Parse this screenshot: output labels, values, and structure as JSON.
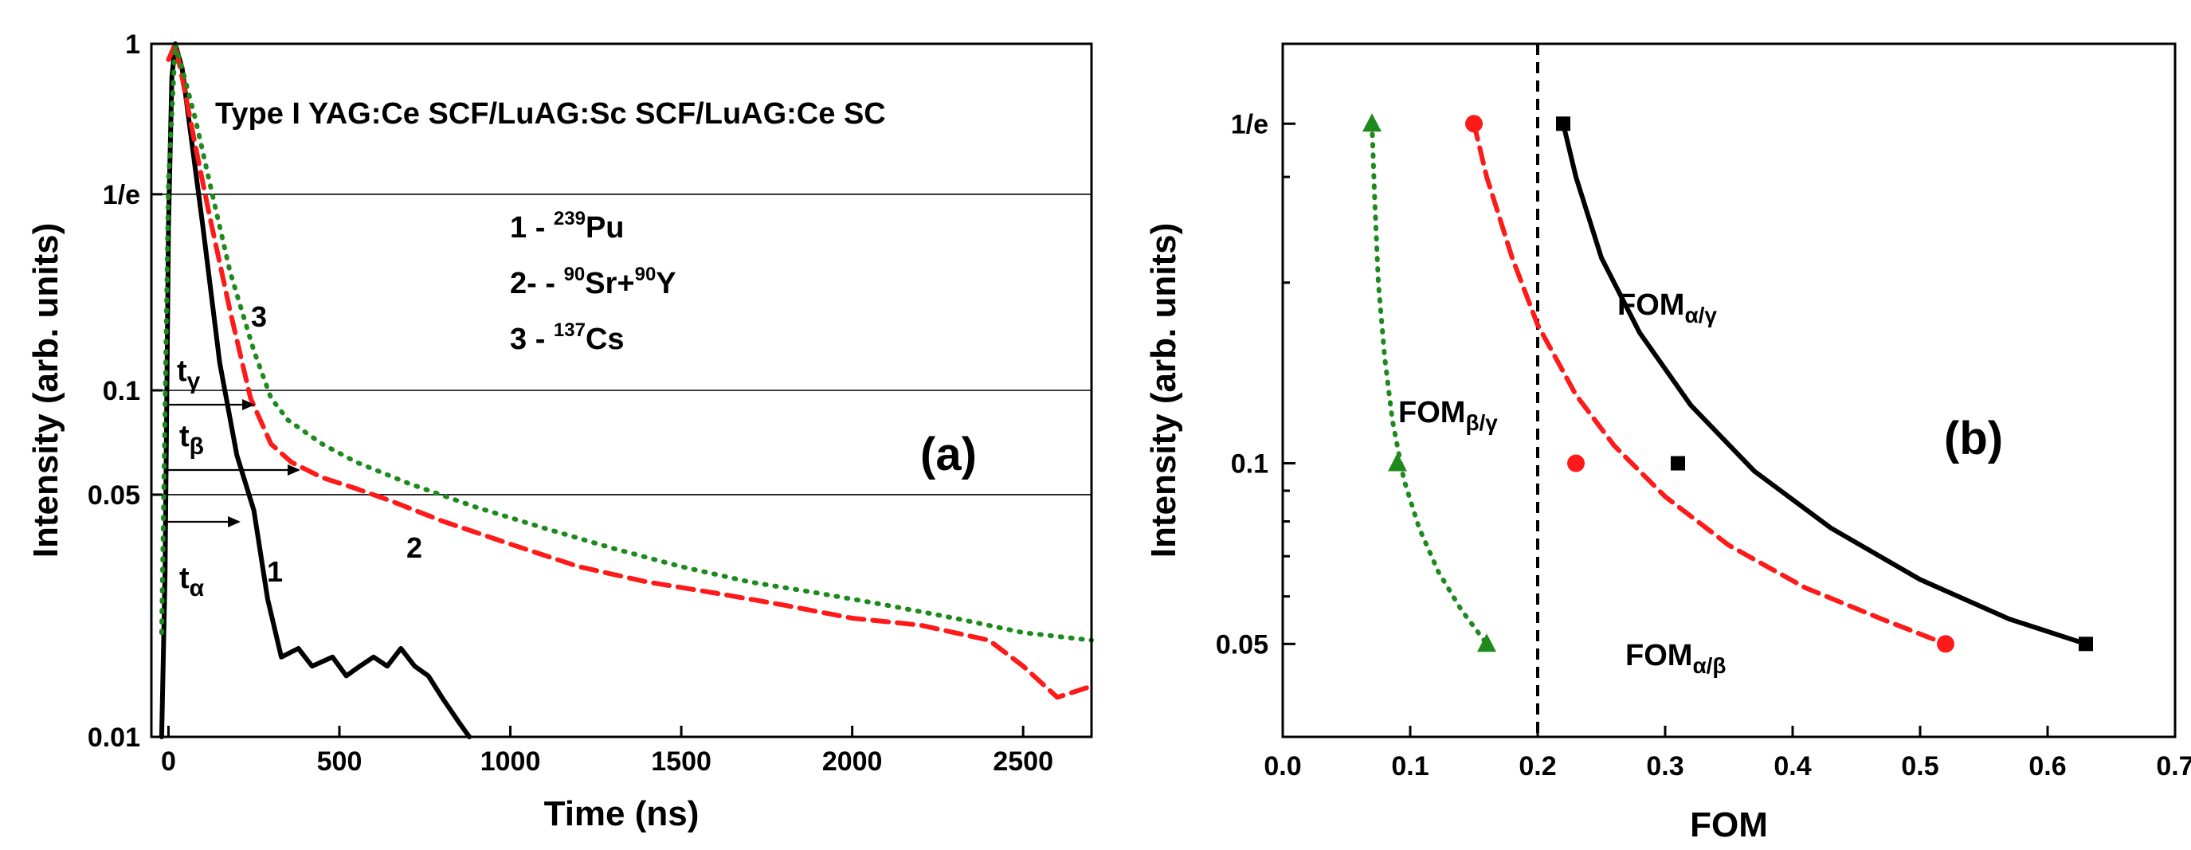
{
  "colors": {
    "black": "#000000",
    "red": "#ff1a1a",
    "green": "#1e8a1e"
  },
  "chart_data": [
    {
      "type": "line",
      "panel": "(a)",
      "title": "Type I YAG:Ce SCF/LuAG:Sc SCF/LuAG:Ce SC",
      "xlabel": "Time (ns)",
      "ylabel": "Intensity (arb. units)",
      "xlim": [
        -50,
        2700
      ],
      "ylim": [
        0.01,
        1
      ],
      "yscale": "log",
      "xticks": [
        0,
        500,
        1000,
        1500,
        2000,
        2500
      ],
      "xtick_labels": [
        "0",
        "500",
        "1000",
        "1500",
        "2000",
        "2500"
      ],
      "yticks": [
        0.01,
        0.05,
        0.1,
        0.368,
        1
      ],
      "ytick_labels": [
        "0.01",
        "0.05",
        "0.1",
        "1/e",
        "1"
      ],
      "hlines": [
        0.368,
        0.1,
        0.05
      ],
      "legend": [
        {
          "num": "1 - ",
          "sup": "239",
          "name": "Pu"
        },
        {
          "num": "2- - ",
          "sup": "90",
          "name": "Sr+",
          "sup2": "90",
          "name2": "Y"
        },
        {
          "num": "3 - ",
          "sup": "137",
          "name": "Cs"
        }
      ],
      "annotations": [
        {
          "label": "t",
          "sub": "γ",
          "level": 0.1
        },
        {
          "label": "t",
          "sub": "β",
          "level": 0.075
        },
        {
          "label": "t",
          "sub": "α",
          "level": 0.05
        }
      ],
      "series": [
        {
          "name": "1",
          "label": "1",
          "color": "#000000",
          "style": "solid",
          "x": [
            -20,
            -10,
            0,
            10,
            20,
            40,
            60,
            100,
            150,
            200,
            250,
            290,
            330,
            380,
            420,
            480,
            520,
            560,
            600,
            640,
            680,
            720,
            760,
            800,
            850,
            880
          ],
          "y": [
            0.01,
            0.03,
            0.3,
            0.8,
            1.0,
            0.85,
            0.6,
            0.3,
            0.12,
            0.065,
            0.045,
            0.025,
            0.017,
            0.018,
            0.016,
            0.017,
            0.015,
            0.016,
            0.017,
            0.016,
            0.018,
            0.016,
            0.015,
            0.013,
            0.011,
            0.01
          ]
        },
        {
          "name": "2",
          "label": "2",
          "color": "#ff1a1a",
          "style": "dashed",
          "x": [
            0,
            20,
            40,
            80,
            120,
            180,
            240,
            300,
            360,
            450,
            550,
            650,
            800,
            1000,
            1200,
            1400,
            1600,
            1800,
            2000,
            2200,
            2400,
            2500,
            2600,
            2700
          ],
          "y": [
            0.9,
            1.0,
            0.8,
            0.5,
            0.32,
            0.17,
            0.095,
            0.07,
            0.062,
            0.056,
            0.052,
            0.048,
            0.042,
            0.036,
            0.031,
            0.028,
            0.026,
            0.024,
            0.022,
            0.021,
            0.019,
            0.016,
            0.013,
            0.014
          ]
        },
        {
          "name": "3",
          "label": "3",
          "color": "#1e8a1e",
          "style": "dotted",
          "x": [
            -20,
            0,
            20,
            40,
            80,
            120,
            180,
            250,
            300,
            350,
            450,
            550,
            700,
            900,
            1100,
            1300,
            1500,
            1700,
            1900,
            2100,
            2300,
            2500,
            2700
          ],
          "y": [
            0.02,
            0.4,
            1.0,
            0.85,
            0.6,
            0.4,
            0.22,
            0.13,
            0.095,
            0.082,
            0.07,
            0.062,
            0.054,
            0.046,
            0.04,
            0.035,
            0.031,
            0.028,
            0.026,
            0.024,
            0.022,
            0.02,
            0.019
          ]
        }
      ]
    },
    {
      "type": "scatter",
      "panel": "(b)",
      "xlabel": "FOM",
      "ylabel": "Intensity (arb. units)",
      "xlim": [
        0,
        0.7
      ],
      "ylim": [
        0.035,
        0.5
      ],
      "yscale": "log",
      "xticks": [
        0,
        0.1,
        0.2,
        0.3,
        0.4,
        0.5,
        0.6,
        0.7
      ],
      "xtick_labels": [
        "0.0",
        "0.1",
        "0.2",
        "0.3",
        "0.4",
        "0.5",
        "0.6",
        "0.7"
      ],
      "yticks": [
        0.05,
        0.1,
        0.368
      ],
      "ytick_labels": [
        "0.05",
        "0.1",
        "1/e"
      ],
      "minor_yticks": [
        0.06,
        0.07,
        0.08,
        0.09,
        0.2,
        0.3
      ],
      "vline": 0.2,
      "series": [
        {
          "name": "FOM",
          "sub": "α/γ",
          "color": "#000000",
          "marker": "square",
          "style": "solid",
          "points": [
            [
              0.22,
              0.368
            ],
            [
              0.31,
              0.1
            ],
            [
              0.63,
              0.05
            ]
          ],
          "curve_x": [
            0.22,
            0.23,
            0.25,
            0.28,
            0.32,
            0.37,
            0.43,
            0.5,
            0.57,
            0.63
          ],
          "curve_y": [
            0.368,
            0.3,
            0.22,
            0.165,
            0.125,
            0.097,
            0.078,
            0.064,
            0.055,
            0.05
          ]
        },
        {
          "name": "FOM",
          "sub": "α/β",
          "color": "#ff1a1a",
          "marker": "circle",
          "style": "dashed",
          "points": [
            [
              0.15,
              0.368
            ],
            [
              0.23,
              0.1
            ],
            [
              0.52,
              0.05
            ]
          ],
          "curve_x": [
            0.15,
            0.16,
            0.18,
            0.2,
            0.23,
            0.26,
            0.3,
            0.35,
            0.41,
            0.47,
            0.52
          ],
          "curve_y": [
            0.368,
            0.3,
            0.22,
            0.17,
            0.13,
            0.107,
            0.088,
            0.073,
            0.062,
            0.055,
            0.05
          ]
        },
        {
          "name": "FOM",
          "sub": "β/γ",
          "color": "#1e8a1e",
          "marker": "triangle",
          "style": "dotted",
          "points": [
            [
              0.07,
              0.368
            ],
            [
              0.09,
              0.1
            ],
            [
              0.16,
              0.05
            ]
          ],
          "curve_x": [
            0.07,
            0.072,
            0.075,
            0.08,
            0.086,
            0.095,
            0.107,
            0.122,
            0.14,
            0.16
          ],
          "curve_y": [
            0.368,
            0.28,
            0.2,
            0.15,
            0.118,
            0.094,
            0.078,
            0.066,
            0.057,
            0.05
          ]
        }
      ]
    }
  ]
}
